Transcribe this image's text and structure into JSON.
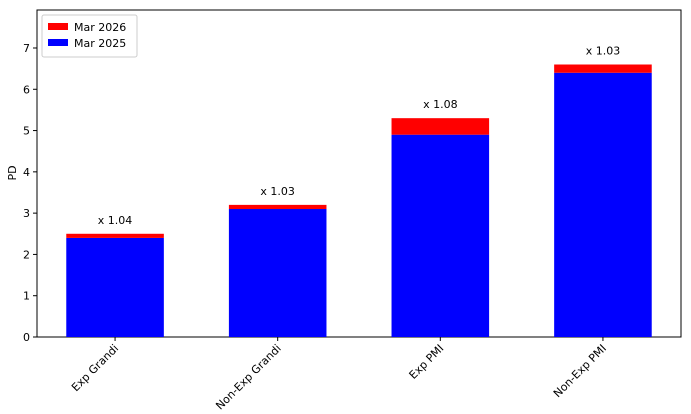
{
  "chart_data": {
    "type": "stacked_bar",
    "ylabel": "PD",
    "categories": [
      "Exp Grandi",
      "Non-Exp Grandi",
      "Exp PMI",
      "Non-Exp PMI"
    ],
    "series": [
      {
        "name": "Mar 2025",
        "color": "#0000ff",
        "values": [
          2.4,
          3.1,
          4.9,
          6.4
        ]
      },
      {
        "name": "Mar 2026",
        "color": "#ff0000",
        "values": [
          0.1,
          0.1,
          0.4,
          0.2
        ]
      }
    ],
    "annotations": [
      "x 1.04",
      "x 1.03",
      "x 1.08",
      "x 1.03"
    ],
    "ylim": [
      0,
      7.92
    ],
    "yticks": [
      0,
      1,
      2,
      3,
      4,
      5,
      6,
      7
    ],
    "legend": "upper left"
  }
}
